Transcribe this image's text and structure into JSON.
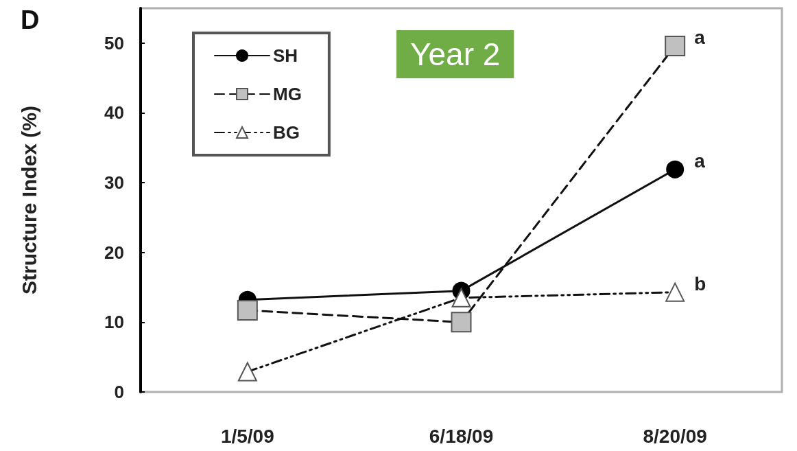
{
  "chart_data": {
    "type": "line",
    "ylabel": "Structure Index (%)",
    "categories": [
      "1/5/09",
      "6/18/09",
      "8/20/09"
    ],
    "series": [
      {
        "name": "SH",
        "color": "#000000",
        "marker": "circle",
        "line_style": "solid",
        "values": [
          13.2,
          14.5,
          31.9
        ]
      },
      {
        "name": "MG",
        "color": "#c0c0c0",
        "marker": "square",
        "line_style": "dashed",
        "values": [
          11.7,
          10.0,
          49.6
        ]
      },
      {
        "name": "BG",
        "color": "#ffffff",
        "marker": "triangle",
        "line_style": "dotted",
        "values": [
          2.9,
          13.5,
          14.3
        ]
      }
    ],
    "ylim": [
      0,
      55
    ],
    "yticks": [
      0,
      10,
      20,
      30,
      40,
      50
    ],
    "grid": false,
    "legend": "top left",
    "annotations": [
      "D",
      "Year 2",
      {
        "text": "a",
        "x": "8/20/09",
        "y": 49.6
      },
      {
        "text": "a",
        "x": "8/20/09",
        "y": 31.9
      },
      {
        "text": "b",
        "x": "8/20/09",
        "y": 14.3
      }
    ]
  }
}
